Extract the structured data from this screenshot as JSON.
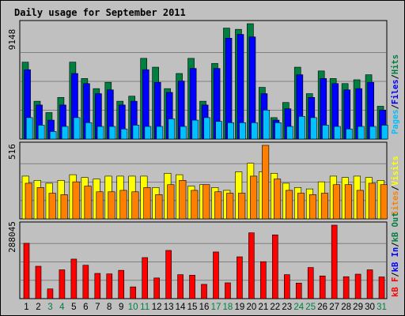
{
  "title": "Daily usage for September 2011",
  "colors": {
    "background": "#c0c0c0",
    "plot_bg": "#c0c0c0",
    "title": "#0000c0",
    "hits": "#008040",
    "files": "#0000ff",
    "pages": "#00c0ff",
    "visits": "#ffff00",
    "sites": "#ff8000",
    "kbytes": "#ff0000",
    "weekend": "#008040",
    "weekday": "#000000"
  },
  "labels": {
    "pages": "Pages",
    "files": "Files",
    "hits": "Hits",
    "visits": "Visits",
    "sites": "Sites",
    "kb_f": "kB F",
    "kb_in": "kB In",
    "kb_out": "kB Out",
    "sep": "/"
  },
  "chart_data": [
    {
      "type": "bar",
      "panel": "hits-files-pages",
      "categories": [
        "1",
        "2",
        "3",
        "4",
        "5",
        "6",
        "7",
        "8",
        "9",
        "10",
        "11",
        "12",
        "13",
        "14",
        "15",
        "16",
        "17",
        "18",
        "19",
        "20",
        "21",
        "22",
        "23",
        "24",
        "25",
        "26",
        "27",
        "28",
        "29",
        "30",
        "31"
      ],
      "weekend_days": [
        "3",
        "4",
        "10",
        "11",
        "17",
        "18",
        "24",
        "25",
        "31"
      ],
      "ymax_label": "9148",
      "ylim": [
        0,
        9148
      ],
      "series": [
        {
          "name": "Hits",
          "values": [
            6100,
            3000,
            2100,
            3300,
            6100,
            4800,
            4000,
            4500,
            3000,
            3400,
            6400,
            5700,
            4000,
            5200,
            6400,
            3000,
            6000,
            8800,
            8700,
            9148,
            4100,
            1700,
            2900,
            5700,
            3600,
            5400,
            4800,
            4400,
            4700,
            5100,
            2600
          ]
        },
        {
          "name": "Files",
          "values": [
            5500,
            2700,
            1500,
            2700,
            5200,
            4400,
            3600,
            3900,
            2700,
            3000,
            5500,
            4500,
            3700,
            4600,
            5600,
            2700,
            5600,
            8000,
            8300,
            8100,
            3600,
            1500,
            2400,
            5100,
            3300,
            4800,
            4400,
            3900,
            4000,
            4500,
            2300
          ]
        },
        {
          "name": "Pages",
          "values": [
            1700,
            1100,
            600,
            1000,
            1700,
            1300,
            1000,
            1000,
            800,
            1100,
            1000,
            1000,
            1600,
            1000,
            1500,
            1700,
            1400,
            1300,
            1300,
            1300,
            2300,
            1300,
            1000,
            1800,
            1700,
            1100,
            1000,
            800,
            1000,
            1000,
            1100
          ]
        }
      ]
    },
    {
      "type": "bar",
      "panel": "visits-sites",
      "categories": [
        "1",
        "2",
        "3",
        "4",
        "5",
        "6",
        "7",
        "8",
        "9",
        "10",
        "11",
        "12",
        "13",
        "14",
        "15",
        "16",
        "17",
        "18",
        "19",
        "20",
        "21",
        "22",
        "23",
        "24",
        "25",
        "26",
        "27",
        "28",
        "29",
        "30",
        "31"
      ],
      "ymax_label": "516",
      "ylim": [
        0,
        516
      ],
      "series": [
        {
          "name": "Visits",
          "values": [
            300,
            270,
            250,
            270,
            310,
            290,
            280,
            300,
            300,
            300,
            300,
            220,
            320,
            310,
            230,
            240,
            220,
            200,
            330,
            390,
            330,
            320,
            250,
            220,
            210,
            260,
            300,
            290,
            300,
            290,
            270
          ]
        },
        {
          "name": "Sites",
          "values": [
            250,
            220,
            180,
            170,
            260,
            230,
            190,
            190,
            200,
            190,
            220,
            170,
            240,
            270,
            200,
            240,
            190,
            180,
            180,
            300,
            516,
            280,
            200,
            180,
            170,
            180,
            240,
            240,
            200,
            250,
            240
          ]
        }
      ]
    },
    {
      "type": "bar",
      "panel": "kbytes",
      "categories": [
        "1",
        "2",
        "3",
        "4",
        "5",
        "6",
        "7",
        "8",
        "9",
        "10",
        "11",
        "12",
        "13",
        "14",
        "15",
        "16",
        "17",
        "18",
        "19",
        "20",
        "21",
        "22",
        "23",
        "24",
        "25",
        "26",
        "27",
        "28",
        "29",
        "30",
        "31"
      ],
      "ymax_label": "288045",
      "ylim": [
        0,
        288045
      ],
      "series": [
        {
          "name": "kB F",
          "values": [
            217000,
            127000,
            38000,
            113000,
            155000,
            131000,
            99000,
            97000,
            111000,
            46000,
            161000,
            81000,
            189000,
            94000,
            92000,
            56000,
            183000,
            62000,
            164000,
            258000,
            145000,
            250000,
            94000,
            61000,
            122000,
            89000,
            288045,
            86000,
            96000,
            113000,
            85000
          ]
        }
      ]
    }
  ]
}
